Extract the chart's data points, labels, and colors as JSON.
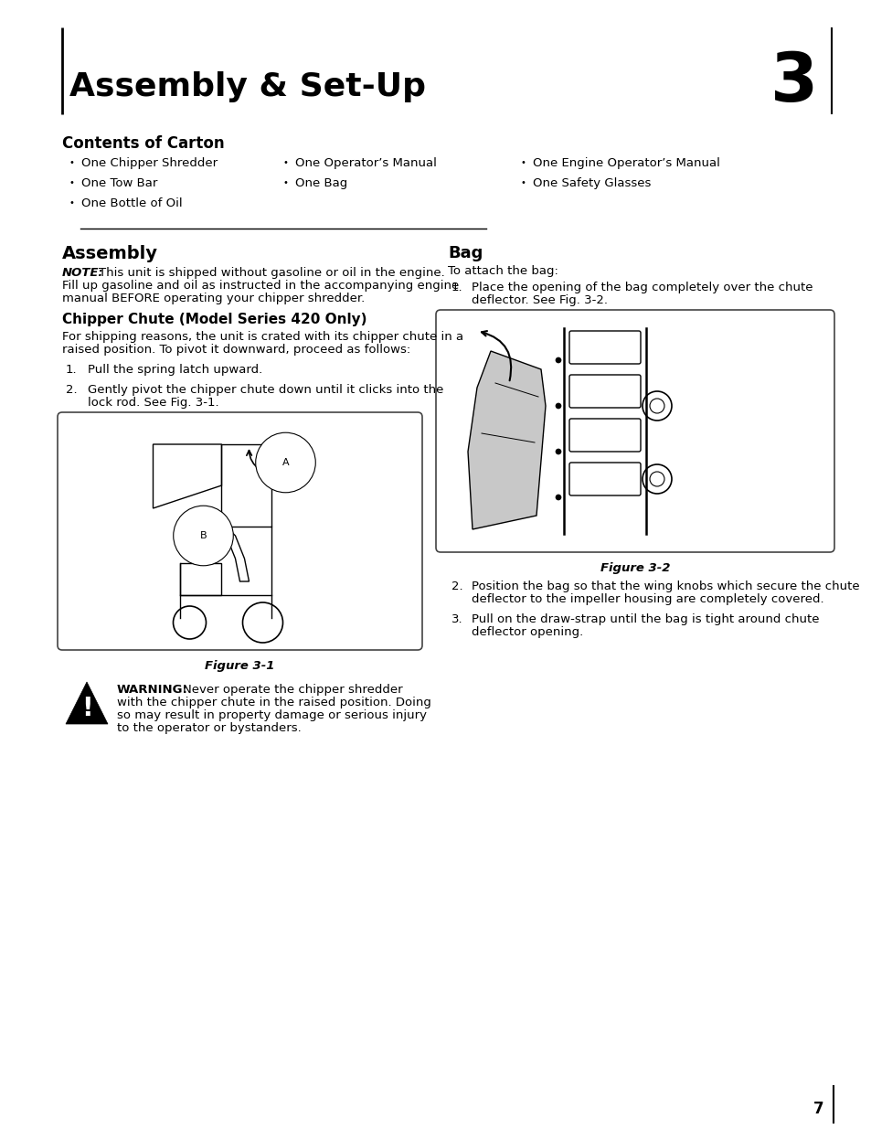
{
  "page_bg": "#ffffff",
  "page_num": "7",
  "title": "Assembly & Set-Up",
  "chapter_num": "3",
  "section1_title": "Contents of Carton",
  "bullet_col1": [
    "One Chipper Shredder",
    "One Tow Bar",
    "One Bottle of Oil"
  ],
  "bullet_col2": [
    "One Operator’s Manual",
    "One Bag"
  ],
  "bullet_col3": [
    "One Engine Operator’s Manual",
    "One Safety Glasses"
  ],
  "section2_title": "Assembly",
  "note_bold": "NOTE:",
  "subsection_title": "Chipper Chute (Model Series 420 Only)",
  "fig1_label": "Figure 3-1",
  "bag_section_title": "Bag",
  "bag_intro": "To attach the bag:",
  "fig2_label": "Figure 3-2",
  "warning_bold": "WARNING:",
  "L": 68,
  "R": 900,
  "mid": 472
}
